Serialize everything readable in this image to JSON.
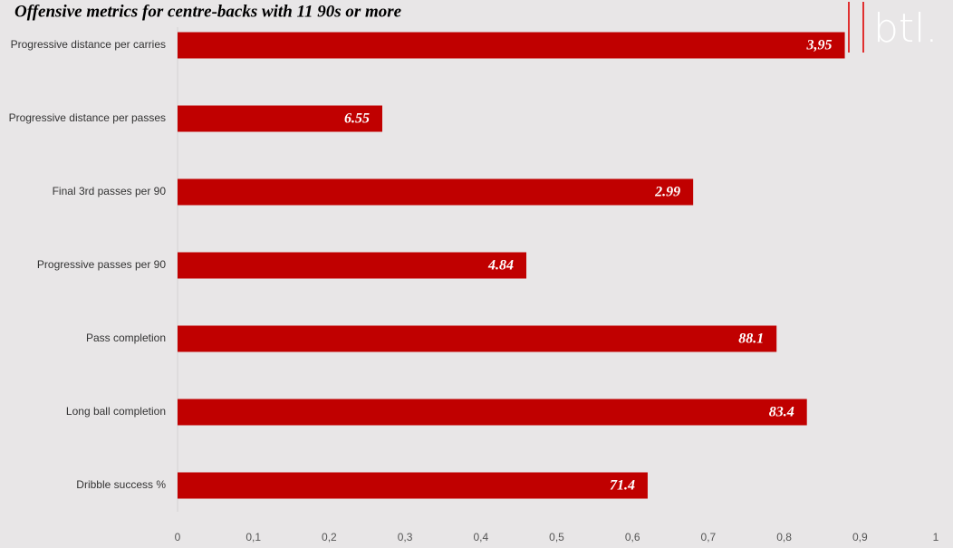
{
  "chart_data": {
    "type": "barh",
    "title": "Offensive metrics for centre-backs with 11 90s or more",
    "logo": "btl.",
    "categories": [
      "Progressive distance per carries",
      "Progressive distance per passes",
      "Final 3rd passes per 90",
      "Progressive passes per 90",
      "Pass completion",
      "Long ball completion",
      "Dribble success %"
    ],
    "values": [
      0.88,
      0.27,
      0.68,
      0.46,
      0.79,
      0.83,
      0.62
    ],
    "annotations": [
      "3,95",
      "6.55",
      "2.99",
      "4.84",
      "88.1",
      "83.4",
      "71.4"
    ],
    "color": "#c00000",
    "xlim": [
      0,
      1
    ],
    "xticks": [
      0,
      {
        "value": 0.1,
        "label": "0,1"
      },
      {
        "value": 0.2,
        "label": "0,2"
      },
      {
        "value": 0.3,
        "label": "0,3"
      },
      {
        "value": 0.4,
        "label": "0,4"
      },
      {
        "value": 0.5,
        "label": "0,5"
      },
      {
        "value": 0.6,
        "label": "0,6"
      },
      {
        "value": 0.7,
        "label": "0,7"
      },
      {
        "value": 0.8,
        "label": "0,8"
      },
      {
        "value": 0.9,
        "label": "0,9"
      },
      1
    ]
  }
}
